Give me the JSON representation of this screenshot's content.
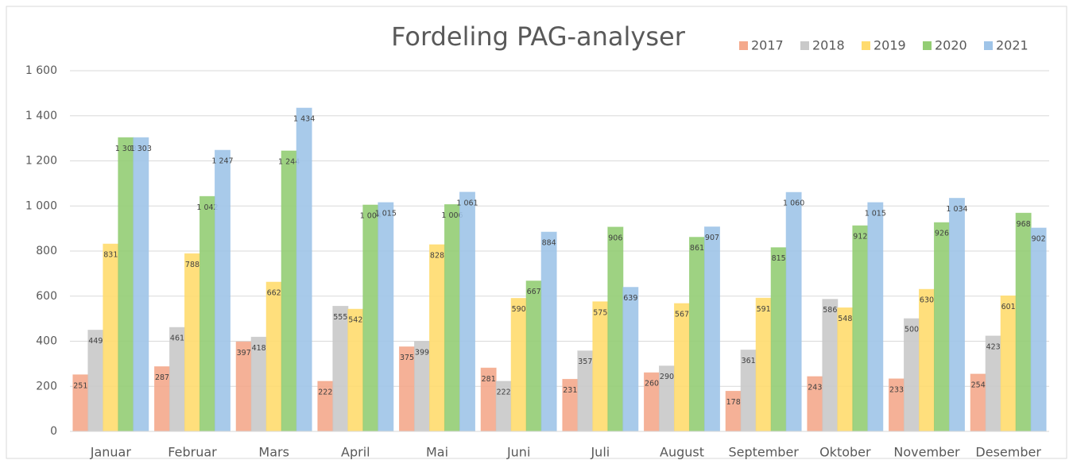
{
  "chart_data": {
    "type": "bar",
    "title": "Fordeling PAG-analyser",
    "categories": [
      "Januar",
      "Februar",
      "Mars",
      "April",
      "Mai",
      "Juni",
      "Juli",
      "August",
      "September",
      "Oktober",
      "November",
      "Desember"
    ],
    "series": [
      {
        "name": "2017",
        "color": "#f4a98c",
        "values": [
          251,
          287,
          397,
          222,
          375,
          281,
          231,
          260,
          178,
          243,
          233,
          254
        ]
      },
      {
        "name": "2018",
        "color": "#c9c9c9",
        "values": [
          449,
          461,
          418,
          555,
          399,
          222,
          357,
          290,
          361,
          586,
          500,
          423
        ]
      },
      {
        "name": "2019",
        "color": "#ffdb6e",
        "values": [
          831,
          788,
          662,
          542,
          828,
          590,
          575,
          567,
          591,
          548,
          630,
          601
        ]
      },
      {
        "name": "2020",
        "color": "#93cd74",
        "values": [
          1303,
          1042,
          1244,
          1004,
          1006,
          667,
          906,
          861,
          815,
          912,
          926,
          968
        ],
        "value_labels": [
          "1 303",
          "1 042",
          "1 244",
          "1 004",
          "1 006",
          "667",
          "906",
          "861",
          "815",
          "912",
          "926",
          "968"
        ]
      },
      {
        "name": "2021",
        "color": "#9fc4e8",
        "values": [
          1303,
          1247,
          1434,
          1015,
          1061,
          884,
          639,
          907,
          1060,
          1015,
          1034,
          902
        ],
        "value_labels": [
          "1 303",
          "1 247",
          "1 434",
          "1 015",
          "1 061",
          "884",
          "639",
          "907",
          "1 060",
          "1 015",
          "1 034",
          "902"
        ]
      }
    ],
    "ylim": [
      0,
      1600
    ],
    "yticks": [
      0,
      200,
      400,
      600,
      800,
      {
        "value": 1000,
        "label": "1 000"
      },
      {
        "value": 1200,
        "label": "1 200"
      },
      {
        "value": 1400,
        "label": "1 400"
      },
      {
        "value": 1600,
        "label": "1 600"
      }
    ],
    "grid": true,
    "legend": "top-right"
  }
}
